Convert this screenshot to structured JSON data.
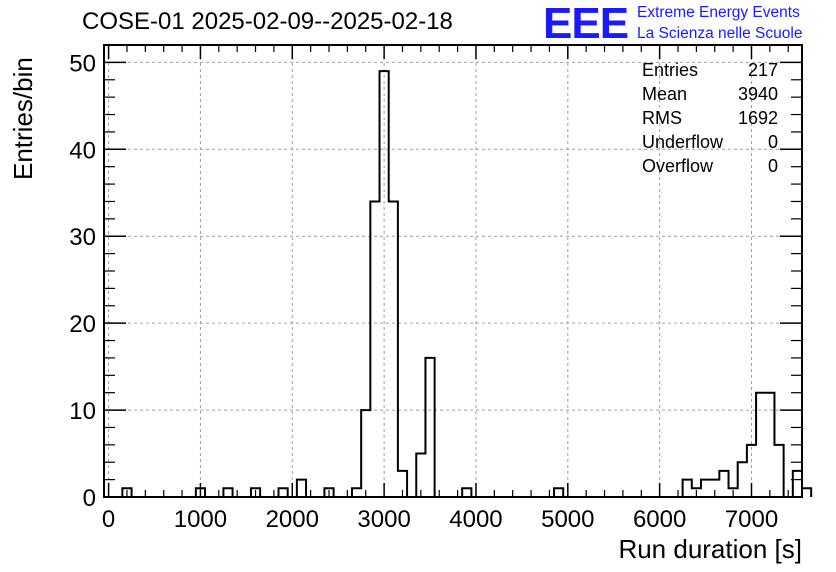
{
  "title": "COSE-01 2025-02-09--2025-02-18",
  "logo": {
    "mark": "EEE",
    "line1": "Extreme Energy Events",
    "line2": "La Scienza nelle Scuole",
    "color": "#1a1aff"
  },
  "stats": [
    {
      "label": "Entries",
      "value": "217"
    },
    {
      "label": "Mean",
      "value": "3940"
    },
    {
      "label": "RMS",
      "value": "1692"
    },
    {
      "label": "Underflow",
      "value": "0"
    },
    {
      "label": "Overflow",
      "value": "0"
    }
  ],
  "chart_data": {
    "type": "histogram",
    "title": "COSE-01 2025-02-09--2025-02-18",
    "xlabel": "Run duration [s]",
    "ylabel": "Entries/bin",
    "xlim": [
      -50,
      7550
    ],
    "ylim": [
      0,
      52
    ],
    "bin_width": 100,
    "bin_edges_start": -50,
    "values": [
      0,
      0,
      1,
      0,
      0,
      0,
      0,
      0,
      0,
      0,
      1,
      0,
      0,
      1,
      0,
      0,
      1,
      0,
      0,
      1,
      0,
      2,
      0,
      0,
      1,
      0,
      0,
      1,
      10,
      34,
      49,
      34,
      3,
      0,
      5,
      16,
      0,
      0,
      0,
      1,
      0,
      0,
      0,
      0,
      0,
      0,
      0,
      0,
      0,
      1,
      0,
      0,
      0,
      0,
      0,
      0,
      0,
      0,
      0,
      0,
      0,
      0,
      0,
      2,
      1,
      2,
      2,
      3,
      1,
      4,
      6,
      12,
      12,
      6,
      0,
      3,
      1
    ],
    "x_ticks": [
      0,
      1000,
      2000,
      3000,
      4000,
      5000,
      6000,
      7000
    ],
    "y_ticks": [
      0,
      10,
      20,
      30,
      40,
      50
    ],
    "grid": true,
    "line_color": "#000000",
    "grid_color": "#a0a0a0"
  }
}
